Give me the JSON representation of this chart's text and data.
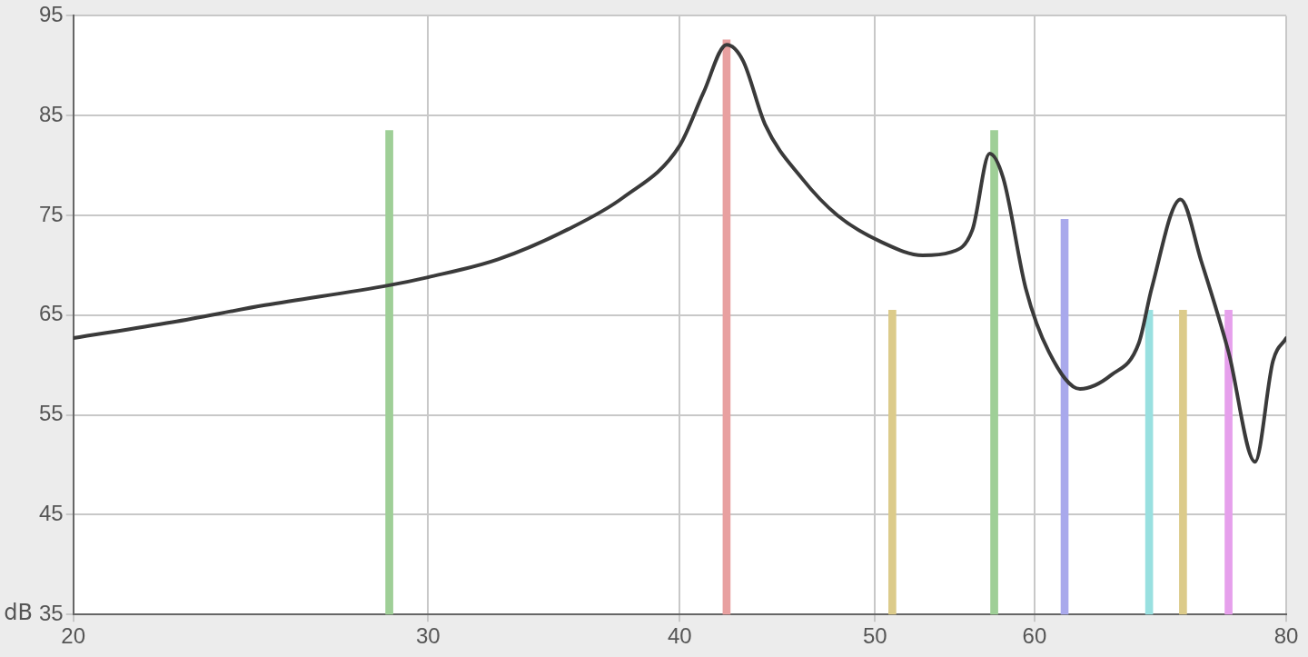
{
  "chart_data": {
    "type": "line",
    "ylabel": "dB",
    "xlim": [
      20,
      80
    ],
    "xticks": [
      20,
      30,
      40,
      50,
      60,
      80
    ],
    "ylim": [
      35,
      95
    ],
    "yticks": [
      35,
      45,
      55,
      65,
      75,
      85,
      95
    ],
    "log": "x",
    "grid": true,
    "legend": false,
    "marker": "none",
    "series": [
      {
        "type": "bar",
        "colors": [
          "#9fcf97",
          "#e8a0a0",
          "#dccb8a",
          "#9fcf97",
          "#a9a9ec",
          "#99e0e0",
          "#dccb8a",
          "#e6a0ec"
        ],
        "x": [
          28.7,
          42.2,
          51.0,
          57.3,
          62.1,
          68.4,
          71.1,
          74.9
        ],
        "values": [
          83.5,
          92.6,
          65.5,
          83.5,
          74.6,
          65.5,
          65.5,
          65.5
        ]
      },
      {
        "color": "#3a3a3a",
        "x": [
          20,
          22.4,
          24.9,
          28.7,
          30,
          32.5,
          35.2,
          37.5,
          40,
          41.1,
          42.2,
          43.0,
          44.1,
          46.0,
          47.9,
          50.4,
          52.8,
          54.5,
          55.9,
          57.0,
          57.9,
          59.4,
          61.0,
          63.2,
          65.5,
          67.6,
          68.6,
          70.9,
          72.6,
          74.9,
          77.2,
          78.8,
          80
        ],
        "values": [
          62.7,
          64.3,
          66.0,
          68.0,
          68.8,
          70.6,
          73.6,
          76.8,
          82.0,
          87.3,
          92.1,
          90.5,
          84.1,
          78.7,
          75.0,
          72.3,
          71.0,
          71.3,
          73.6,
          81.2,
          78.7,
          67.7,
          61.3,
          57.6,
          59.0,
          62.2,
          67.7,
          76.6,
          70.4,
          61.3,
          50.3,
          60.4,
          62.7
        ]
      }
    ]
  }
}
